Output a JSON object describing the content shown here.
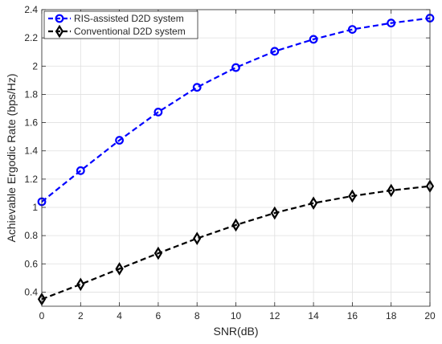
{
  "chart_data": {
    "type": "line",
    "title": "",
    "xlabel": "SNR(dB)",
    "ylabel": "Achievable Ergodic Rate (bps/Hz)",
    "xlim": [
      0,
      20
    ],
    "ylim": [
      0.3,
      2.4
    ],
    "x_ticks": [
      0,
      2,
      4,
      6,
      8,
      10,
      12,
      14,
      16,
      18,
      20
    ],
    "y_ticks": [
      0.4,
      0.6,
      0.8,
      1,
      1.2,
      1.4,
      1.6,
      1.8,
      2,
      2.2,
      2.4
    ],
    "grid": true,
    "legend_position": "top-left",
    "x": [
      0,
      2,
      4,
      6,
      8,
      10,
      12,
      14,
      16,
      18,
      20
    ],
    "series": [
      {
        "name": "RIS-assisted D2D system",
        "color": "#0000ff",
        "marker": "circle",
        "line_style": "dashed",
        "values": [
          1.04,
          1.26,
          1.475,
          1.675,
          1.85,
          1.99,
          2.105,
          2.19,
          2.26,
          2.305,
          2.34
        ]
      },
      {
        "name": "Conventional D2D system",
        "color": "#000000",
        "marker": "diamond",
        "line_style": "dashed",
        "values": [
          0.35,
          0.455,
          0.565,
          0.675,
          0.78,
          0.875,
          0.96,
          1.03,
          1.08,
          1.12,
          1.15
        ]
      }
    ]
  }
}
